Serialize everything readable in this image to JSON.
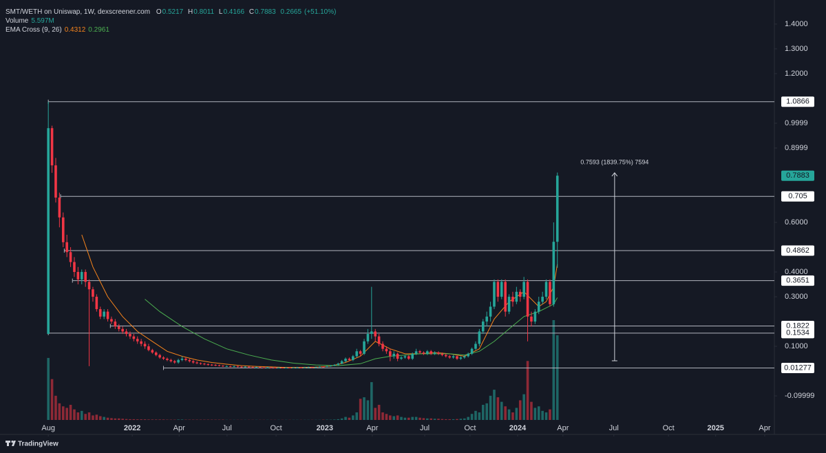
{
  "chart_data": {
    "type": "candlestick",
    "title": "SMT/WETH on Uniswap, 1W, dexscreener.com",
    "ohlc_labels": {
      "open": "O",
      "high": "H",
      "low": "L",
      "close": "C"
    },
    "change": 0.2665,
    "change_label": "(+51.10%)",
    "up_color": "#26a69a",
    "down_color": "#f23645",
    "xlim": [
      -13,
      195.4
    ],
    "ylim": [
      -0.197,
      1.497
    ],
    "xticks": [
      {
        "value": 0,
        "label": "Aug"
      },
      {
        "value": 22.6,
        "label": "2022"
      },
      {
        "value": 35.2,
        "label": "Apr"
      },
      {
        "value": 48.1,
        "label": "Jul"
      },
      {
        "value": 61.3,
        "label": "Oct"
      },
      {
        "value": 74.4,
        "label": "2023"
      },
      {
        "value": 87.2,
        "label": "Apr"
      },
      {
        "value": 101.3,
        "label": "Jul"
      },
      {
        "value": 113.5,
        "label": "Oct"
      },
      {
        "value": 126.3,
        "label": "2024"
      },
      {
        "value": 138.5,
        "label": "Apr"
      },
      {
        "value": 152.2,
        "label": "Jul"
      },
      {
        "value": 166.9,
        "label": "Oct"
      },
      {
        "value": 179.6,
        "label": "2025"
      },
      {
        "value": 192.8,
        "label": "Apr"
      }
    ],
    "yticks": [
      {
        "value": 1.4,
        "label": "1.4000"
      },
      {
        "value": 1.3,
        "label": "1.3000"
      },
      {
        "value": 1.2,
        "label": "1.2000"
      },
      {
        "value": 0.9999,
        "label": "0.9999"
      },
      {
        "value": 0.8999,
        "label": "0.8999"
      },
      {
        "value": 0.6,
        "label": "0.6000"
      },
      {
        "value": 0.4,
        "label": "0.4000"
      },
      {
        "value": 0.3,
        "label": "0.3000"
      },
      {
        "value": 0.1,
        "label": "0.1000"
      },
      {
        "value": -0.09999,
        "label": "-0.09999"
      }
    ],
    "open": [
      0.15,
      0.98,
      0.83,
      0.7,
      0.62,
      0.52,
      0.48,
      0.44,
      0.4,
      0.37,
      0.4,
      0.36,
      0.33,
      0.3,
      0.25,
      0.22,
      0.24,
      0.21,
      0.2,
      0.18,
      0.17,
      0.16,
      0.15,
      0.14,
      0.13,
      0.12,
      0.11,
      0.1,
      0.085,
      0.075,
      0.065,
      0.055,
      0.05,
      0.045,
      0.04,
      0.035,
      0.045,
      0.05,
      0.045,
      0.04,
      0.035,
      0.032,
      0.03,
      0.028,
      0.026,
      0.025,
      0.024,
      0.022,
      0.02,
      0.02,
      0.019,
      0.02,
      0.018,
      0.017,
      0.018,
      0.016,
      0.015,
      0.016,
      0.015,
      0.014,
      0.015,
      0.014,
      0.013,
      0.014,
      0.013,
      0.014,
      0.013,
      0.014,
      0.015,
      0.014,
      0.015,
      0.016,
      0.015,
      0.016,
      0.018,
      0.017,
      0.02,
      0.022,
      0.025,
      0.03,
      0.04,
      0.05,
      0.045,
      0.06,
      0.08,
      0.07,
      0.12,
      0.15,
      0.16,
      0.14,
      0.11,
      0.09,
      0.08,
      0.06,
      0.07,
      0.05,
      0.055,
      0.06,
      0.05,
      0.07,
      0.08,
      0.075,
      0.07,
      0.08,
      0.07,
      0.075,
      0.07,
      0.065,
      0.06,
      0.055,
      0.06,
      0.05,
      0.055,
      0.06,
      0.07,
      0.09,
      0.11,
      0.16,
      0.2,
      0.22,
      0.26,
      0.36,
      0.3,
      0.36,
      0.24,
      0.3,
      0.28,
      0.32,
      0.3,
      0.36,
      0.22,
      0.2,
      0.24,
      0.28,
      0.3,
      0.36,
      0.27,
      0.5217
    ],
    "high": [
      1.0866,
      0.99,
      0.86,
      0.72,
      0.64,
      0.55,
      0.5,
      0.46,
      0.42,
      0.41,
      0.41,
      0.37,
      0.34,
      0.31,
      0.26,
      0.25,
      0.25,
      0.22,
      0.21,
      0.19,
      0.18,
      0.17,
      0.16,
      0.15,
      0.14,
      0.13,
      0.12,
      0.11,
      0.09,
      0.08,
      0.07,
      0.06,
      0.055,
      0.05,
      0.045,
      0.05,
      0.06,
      0.055,
      0.05,
      0.045,
      0.04,
      0.035,
      0.033,
      0.031,
      0.029,
      0.028,
      0.026,
      0.024,
      0.023,
      0.022,
      0.022,
      0.021,
      0.02,
      0.02,
      0.019,
      0.018,
      0.018,
      0.017,
      0.016,
      0.017,
      0.016,
      0.015,
      0.016,
      0.015,
      0.016,
      0.015,
      0.016,
      0.017,
      0.016,
      0.017,
      0.018,
      0.017,
      0.018,
      0.02,
      0.019,
      0.022,
      0.024,
      0.028,
      0.034,
      0.045,
      0.055,
      0.055,
      0.065,
      0.09,
      0.085,
      0.13,
      0.17,
      0.34,
      0.17,
      0.15,
      0.12,
      0.1,
      0.09,
      0.08,
      0.075,
      0.06,
      0.065,
      0.065,
      0.075,
      0.09,
      0.085,
      0.08,
      0.085,
      0.085,
      0.08,
      0.08,
      0.075,
      0.07,
      0.065,
      0.065,
      0.065,
      0.06,
      0.065,
      0.075,
      0.095,
      0.12,
      0.17,
      0.21,
      0.24,
      0.28,
      0.37,
      0.37,
      0.37,
      0.37,
      0.31,
      0.32,
      0.34,
      0.33,
      0.38,
      0.37,
      0.24,
      0.25,
      0.3,
      0.32,
      0.37,
      0.37,
      0.6,
      0.8011
    ],
    "low": [
      0.15,
      0.8,
      0.68,
      0.58,
      0.5,
      0.46,
      0.42,
      0.38,
      0.35,
      0.35,
      0.34,
      0.02,
      0.28,
      0.24,
      0.21,
      0.21,
      0.2,
      0.19,
      0.17,
      0.16,
      0.15,
      0.14,
      0.13,
      0.12,
      0.11,
      0.1,
      0.09,
      0.08,
      0.07,
      0.06,
      0.05,
      0.045,
      0.04,
      0.035,
      0.03,
      0.03,
      0.04,
      0.04,
      0.035,
      0.03,
      0.028,
      0.026,
      0.024,
      0.022,
      0.021,
      0.02,
      0.019,
      0.017,
      0.017,
      0.016,
      0.016,
      0.015,
      0.014,
      0.015,
      0.013,
      0.013,
      0.013,
      0.013,
      0.012,
      0.012,
      0.012,
      0.011,
      0.012,
      0.011,
      0.012,
      0.011,
      0.012,
      0.013,
      0.012,
      0.013,
      0.014,
      0.013,
      0.014,
      0.015,
      0.015,
      0.016,
      0.018,
      0.02,
      0.023,
      0.028,
      0.035,
      0.04,
      0.04,
      0.055,
      0.06,
      0.065,
      0.11,
      0.13,
      0.12,
      0.1,
      0.08,
      0.07,
      0.04,
      0.05,
      0.04,
      0.045,
      0.05,
      0.045,
      0.045,
      0.065,
      0.07,
      0.065,
      0.065,
      0.065,
      0.065,
      0.065,
      0.06,
      0.055,
      0.05,
      0.05,
      0.045,
      0.045,
      0.05,
      0.055,
      0.065,
      0.085,
      0.1,
      0.15,
      0.18,
      0.2,
      0.25,
      0.28,
      0.29,
      0.22,
      0.23,
      0.26,
      0.27,
      0.28,
      0.29,
      0.12,
      0.18,
      0.19,
      0.23,
      0.27,
      0.29,
      0.26,
      0.26,
      0.4166
    ],
    "close": [
      0.98,
      0.83,
      0.7,
      0.62,
      0.52,
      0.48,
      0.44,
      0.4,
      0.37,
      0.4,
      0.36,
      0.33,
      0.3,
      0.25,
      0.22,
      0.24,
      0.21,
      0.2,
      0.18,
      0.17,
      0.16,
      0.15,
      0.14,
      0.13,
      0.12,
      0.11,
      0.1,
      0.085,
      0.075,
      0.065,
      0.055,
      0.05,
      0.045,
      0.04,
      0.035,
      0.045,
      0.05,
      0.045,
      0.04,
      0.035,
      0.032,
      0.03,
      0.028,
      0.026,
      0.025,
      0.024,
      0.022,
      0.02,
      0.02,
      0.019,
      0.02,
      0.018,
      0.017,
      0.018,
      0.016,
      0.015,
      0.016,
      0.015,
      0.014,
      0.015,
      0.014,
      0.013,
      0.014,
      0.013,
      0.014,
      0.013,
      0.014,
      0.015,
      0.014,
      0.015,
      0.016,
      0.015,
      0.016,
      0.018,
      0.017,
      0.02,
      0.022,
      0.025,
      0.03,
      0.04,
      0.05,
      0.045,
      0.06,
      0.08,
      0.07,
      0.12,
      0.15,
      0.16,
      0.14,
      0.11,
      0.09,
      0.08,
      0.06,
      0.07,
      0.05,
      0.055,
      0.06,
      0.05,
      0.07,
      0.08,
      0.075,
      0.07,
      0.08,
      0.07,
      0.075,
      0.07,
      0.065,
      0.06,
      0.055,
      0.06,
      0.05,
      0.055,
      0.06,
      0.07,
      0.09,
      0.11,
      0.16,
      0.2,
      0.22,
      0.26,
      0.36,
      0.3,
      0.36,
      0.24,
      0.3,
      0.28,
      0.32,
      0.3,
      0.36,
      0.22,
      0.2,
      0.24,
      0.28,
      0.3,
      0.36,
      0.27,
      0.5217,
      0.7883
    ],
    "volume": {
      "name": "Volume",
      "value_label": "5.597M",
      "values": [
        4.1,
        2.7,
        1.6,
        1.1,
        0.9,
        0.8,
        1.0,
        0.7,
        0.5,
        0.6,
        0.4,
        0.5,
        0.3,
        0.35,
        0.25,
        0.2,
        0.15,
        0.12,
        0.1,
        0.1,
        0.08,
        0.06,
        0.05,
        0.05,
        0.04,
        0.04,
        0.04,
        0.03,
        0.03,
        0.03,
        0.03,
        0.03,
        0.02,
        0.02,
        0.02,
        0.03,
        0.03,
        0.02,
        0.02,
        0.02,
        0.02,
        0.02,
        0.02,
        0.02,
        0.02,
        0.02,
        0.02,
        0.02,
        0.01,
        0.01,
        0.01,
        0.01,
        0.01,
        0.01,
        0.01,
        0.01,
        0.01,
        0.01,
        0.01,
        0.01,
        0.01,
        0.01,
        0.01,
        0.01,
        0.01,
        0.01,
        0.01,
        0.01,
        0.01,
        0.01,
        0.01,
        0.01,
        0.01,
        0.01,
        0.02,
        0.02,
        0.02,
        0.03,
        0.05,
        0.1,
        0.2,
        0.15,
        0.3,
        0.5,
        1.4,
        1.5,
        1.3,
        2.5,
        0.8,
        1.0,
        0.5,
        0.4,
        0.3,
        0.25,
        0.3,
        0.2,
        0.15,
        0.15,
        0.2,
        0.2,
        0.15,
        0.12,
        0.1,
        0.1,
        0.08,
        0.08,
        0.06,
        0.05,
        0.05,
        0.05,
        0.06,
        0.08,
        0.1,
        0.2,
        0.4,
        0.6,
        0.5,
        1.0,
        1.1,
        1.6,
        2.0,
        1.5,
        1.2,
        0.9,
        0.7,
        0.5,
        0.8,
        1.3,
        1.7,
        3.9,
        1.2,
        0.8,
        0.9,
        0.6,
        0.5,
        0.7,
        6.6,
        5.597
      ]
    },
    "ema": {
      "name": "EMA Cross (9, 26)",
      "series": [
        {
          "color": "#f7841c",
          "x": [
            9,
            12,
            16,
            20,
            24,
            28,
            32,
            36,
            40,
            44,
            48,
            52,
            56,
            60,
            64,
            68,
            72,
            76,
            80,
            84,
            88,
            92,
            96,
            100,
            104,
            108,
            112,
            116,
            120,
            124,
            128,
            132,
            134,
            136,
            137
          ],
          "values": [
            0.55,
            0.42,
            0.3,
            0.22,
            0.16,
            0.12,
            0.08,
            0.06,
            0.045,
            0.035,
            0.028,
            0.022,
            0.019,
            0.017,
            0.015,
            0.015,
            0.016,
            0.02,
            0.035,
            0.06,
            0.12,
            0.09,
            0.07,
            0.07,
            0.075,
            0.07,
            0.06,
            0.09,
            0.21,
            0.28,
            0.32,
            0.26,
            0.28,
            0.34,
            0.4312
          ]
        },
        {
          "color": "#4caf50",
          "x": [
            26,
            30,
            36,
            42,
            48,
            54,
            60,
            66,
            72,
            78,
            84,
            88,
            92,
            96,
            100,
            104,
            108,
            112,
            116,
            120,
            124,
            128,
            132,
            136,
            137
          ],
          "values": [
            0.29,
            0.24,
            0.18,
            0.13,
            0.09,
            0.065,
            0.045,
            0.032,
            0.025,
            0.022,
            0.03,
            0.05,
            0.06,
            0.065,
            0.07,
            0.07,
            0.07,
            0.065,
            0.08,
            0.12,
            0.17,
            0.22,
            0.24,
            0.27,
            0.2961
          ]
        }
      ]
    },
    "levels": [
      {
        "value": 1.0866,
        "x": 0
      },
      {
        "value": 0.705,
        "x": 3.3
      },
      {
        "value": 0.4862,
        "x": 4.3
      },
      {
        "value": 0.3651,
        "x": 6.5
      },
      {
        "value": 0.1822,
        "x": 16.7
      },
      {
        "value": 0.1534,
        "x": 0
      },
      {
        "value": 0.01277,
        "x": 31
      }
    ],
    "measure": {
      "text": "0.7593 (1839.75%) 7594",
      "x": 152.4,
      "from": 0.0417,
      "to": 0.8
    },
    "brand": "TradingView"
  }
}
